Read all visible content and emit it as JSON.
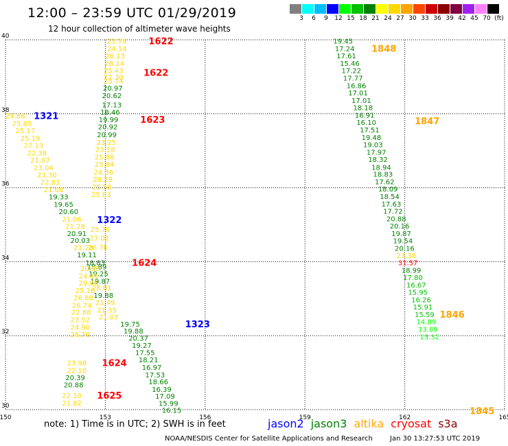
{
  "title": "12:00 – 23:59 UTC 01/29/2019",
  "subtitle": "12 hour collection of altimeter wave heights",
  "color_scale": {
    "colors": [
      "#808080",
      "#00ffff",
      "#00bfff",
      "#0000ff",
      "#00ff00",
      "#00c000",
      "#008000",
      "#ffff00",
      "#ffd700",
      "#ffa500",
      "#ff4500",
      "#cc0000",
      "#8b0000",
      "#800040",
      "#a020f0",
      "#ff80ff",
      "#000000"
    ],
    "labels": [
      "3",
      "6",
      "9",
      "12",
      "15",
      "18",
      "21",
      "24",
      "27",
      "30",
      "33",
      "36",
      "39",
      "42",
      "45",
      "70",
      "(ft)"
    ]
  },
  "note": "note: 1) Time is in UTC; 2) SWH is in feet",
  "legend": [
    {
      "name": "jason2",
      "color": "#0000ff"
    },
    {
      "name": "jason3",
      "color": "#008000"
    },
    {
      "name": "altika",
      "color": "#ffa500"
    },
    {
      "name": "cryosat",
      "color": "#ff0000"
    },
    {
      "name": "s3a",
      "color": "#8b0000"
    }
  ],
  "footer": {
    "agency": "NOAA/NESDIS Center for Satellite Applications and Research",
    "timestamp": "Jan 30 13:27:53 UTC 2019"
  },
  "chart_data": {
    "type": "scatter",
    "xlim": [
      150,
      165
    ],
    "ylim": [
      30,
      40
    ],
    "x_ticks": [
      150,
      153,
      156,
      159,
      162,
      165
    ],
    "y_ticks": [
      30,
      32,
      34,
      36,
      38,
      40
    ],
    "grid": true,
    "time_labels": [
      {
        "text": "1622",
        "x": 154.3,
        "y": 39.97,
        "color": "#ff0000"
      },
      {
        "text": "1622",
        "x": 154.15,
        "y": 39.12,
        "color": "#ff0000"
      },
      {
        "text": "1623",
        "x": 154.05,
        "y": 37.85,
        "color": "#ff0000"
      },
      {
        "text": "1624",
        "x": 153.8,
        "y": 33.98,
        "color": "#ff0000"
      },
      {
        "text": "1624",
        "x": 152.9,
        "y": 31.27,
        "color": "#ff0000"
      },
      {
        "text": "1625",
        "x": 152.75,
        "y": 30.39,
        "color": "#ff0000"
      },
      {
        "text": "1321",
        "x": 150.85,
        "y": 37.95,
        "color": "#0000ff"
      },
      {
        "text": "1322",
        "x": 152.75,
        "y": 35.14,
        "color": "#0000ff"
      },
      {
        "text": "1323",
        "x": 155.4,
        "y": 32.32,
        "color": "#0000ff"
      },
      {
        "text": "1848",
        "x": 161.0,
        "y": 39.77,
        "color": "#ffa500"
      },
      {
        "text": "1847",
        "x": 162.3,
        "y": 37.81,
        "color": "#ffa500"
      },
      {
        "text": "1846",
        "x": 163.05,
        "y": 32.58,
        "color": "#ffa500"
      },
      {
        "text": "1845",
        "x": 163.95,
        "y": 29.97,
        "color": "#ffa500"
      }
    ],
    "points": [
      {
        "v": "23.78",
        "x": 153.05,
        "y": 39.97,
        "c": "#ffd700"
      },
      {
        "v": "24.14",
        "x": 153.05,
        "y": 39.77,
        "c": "#ffd700"
      },
      {
        "v": "26.13",
        "x": 153.0,
        "y": 39.57,
        "c": "#ffd700"
      },
      {
        "v": "28.14",
        "x": 152.98,
        "y": 39.37,
        "c": "#ffd700"
      },
      {
        "v": "25.43",
        "x": 152.95,
        "y": 39.17,
        "c": "#ffd700"
      },
      {
        "v": "22.30",
        "x": 152.95,
        "y": 39.0,
        "c": "#ffd700"
      },
      {
        "v": "23.74",
        "x": 152.95,
        "y": 38.9,
        "c": "#ffd700"
      },
      {
        "v": "20.97",
        "x": 152.93,
        "y": 38.7,
        "c": "#008000"
      },
      {
        "v": "20.62",
        "x": 152.9,
        "y": 38.5,
        "c": "#008000"
      },
      {
        "v": "17.13",
        "x": 152.9,
        "y": 38.25,
        "c": "#008000"
      },
      {
        "v": "18.46",
        "x": 152.85,
        "y": 38.05,
        "c": "#008000"
      },
      {
        "v": "19.99",
        "x": 152.8,
        "y": 37.85,
        "c": "#008000"
      },
      {
        "v": "20.92",
        "x": 152.78,
        "y": 37.65,
        "c": "#008000"
      },
      {
        "v": "20.99",
        "x": 152.75,
        "y": 37.44,
        "c": "#008000"
      },
      {
        "v": "23.25",
        "x": 152.73,
        "y": 37.24,
        "c": "#ffd700"
      },
      {
        "v": "23.18",
        "x": 152.7,
        "y": 37.04,
        "c": "#ffd700"
      },
      {
        "v": "25.98",
        "x": 152.68,
        "y": 36.84,
        "c": "#ffd700"
      },
      {
        "v": "25.84",
        "x": 152.68,
        "y": 36.64,
        "c": "#ffd700"
      },
      {
        "v": "24.36",
        "x": 152.65,
        "y": 36.43,
        "c": "#ffd700"
      },
      {
        "v": "28.29",
        "x": 152.63,
        "y": 36.23,
        "c": "#ffd700"
      },
      {
        "v": "25.50",
        "x": 152.6,
        "y": 36.03,
        "c": "#ffd700"
      },
      {
        "v": "25.83",
        "x": 152.58,
        "y": 35.83,
        "c": "#ffd700"
      },
      {
        "v": "25.76",
        "x": 152.55,
        "y": 34.88,
        "c": "#ffd700"
      },
      {
        "v": "27.01",
        "x": 152.53,
        "y": 34.65,
        "c": "#ffd700"
      },
      {
        "v": "26.76",
        "x": 152.48,
        "y": 34.4,
        "c": "#ffd700"
      },
      {
        "v": "18.83",
        "x": 152.4,
        "y": 33.98,
        "c": "#008000"
      },
      {
        "v": "18.89",
        "x": 152.45,
        "y": 33.87,
        "c": "#008000"
      },
      {
        "v": "19.25",
        "x": 152.5,
        "y": 33.68,
        "c": "#008000"
      },
      {
        "v": "19.87",
        "x": 152.55,
        "y": 33.48,
        "c": "#008000"
      },
      {
        "v": "28.01",
        "x": 152.6,
        "y": 33.3,
        "c": "#ffd700"
      },
      {
        "v": "19.88",
        "x": 152.65,
        "y": 33.1,
        "c": "#008000"
      },
      {
        "v": "21.49",
        "x": 152.7,
        "y": 32.9,
        "c": "#ffd700"
      },
      {
        "v": "21.35",
        "x": 152.75,
        "y": 32.7,
        "c": "#ffd700"
      },
      {
        "v": "21.03",
        "x": 152.8,
        "y": 32.51,
        "c": "#ffd700"
      },
      {
        "v": "19.75",
        "x": 153.45,
        "y": 32.32,
        "c": "#008000"
      },
      {
        "v": "19.88",
        "x": 153.55,
        "y": 32.13,
        "c": "#008000"
      },
      {
        "v": "20.37",
        "x": 153.7,
        "y": 31.94,
        "c": "#008000"
      },
      {
        "v": "19.27",
        "x": 153.8,
        "y": 31.74,
        "c": "#008000"
      },
      {
        "v": "17.55",
        "x": 153.9,
        "y": 31.55,
        "c": "#008000"
      },
      {
        "v": "18.21",
        "x": 154.0,
        "y": 31.35,
        "c": "#008000"
      },
      {
        "v": "16.97",
        "x": 154.1,
        "y": 31.15,
        "c": "#008000"
      },
      {
        "v": "17.53",
        "x": 154.2,
        "y": 30.95,
        "c": "#008000"
      },
      {
        "v": "18.66",
        "x": 154.3,
        "y": 30.76,
        "c": "#008000"
      },
      {
        "v": "16.39",
        "x": 154.4,
        "y": 30.56,
        "c": "#008000"
      },
      {
        "v": "17.09",
        "x": 154.5,
        "y": 30.37,
        "c": "#008000"
      },
      {
        "v": "15.99",
        "x": 154.6,
        "y": 30.18,
        "c": "#008000"
      },
      {
        "v": "16.15",
        "x": 154.7,
        "y": 29.99,
        "c": "#008000"
      },
      {
        "v": "24.88",
        "x": 150.0,
        "y": 37.95,
        "c": "#ffd700"
      },
      {
        "v": "25.85",
        "x": 150.2,
        "y": 37.75,
        "c": "#ffd700"
      },
      {
        "v": "25.17",
        "x": 150.3,
        "y": 37.55,
        "c": "#ffd700"
      },
      {
        "v": "25.19",
        "x": 150.45,
        "y": 37.35,
        "c": "#ffd700"
      },
      {
        "v": "27.13",
        "x": 150.55,
        "y": 37.15,
        "c": "#ffd700"
      },
      {
        "v": "22.38",
        "x": 150.65,
        "y": 36.95,
        "c": "#ffd700"
      },
      {
        "v": "21.07",
        "x": 150.75,
        "y": 36.75,
        "c": "#ffd700"
      },
      {
        "v": "23.04",
        "x": 150.85,
        "y": 36.55,
        "c": "#ffd700"
      },
      {
        "v": "23.30",
        "x": 150.95,
        "y": 36.35,
        "c": "#ffd700"
      },
      {
        "v": "22.83",
        "x": 151.05,
        "y": 36.16,
        "c": "#ffd700"
      },
      {
        "v": "21.08",
        "x": 151.15,
        "y": 35.96,
        "c": "#ffd700"
      },
      {
        "v": "19.33",
        "x": 151.3,
        "y": 35.76,
        "c": "#008000"
      },
      {
        "v": "19.65",
        "x": 151.45,
        "y": 35.56,
        "c": "#008000"
      },
      {
        "v": "20.60",
        "x": 151.6,
        "y": 35.36,
        "c": "#008000"
      },
      {
        "v": "21.06",
        "x": 151.7,
        "y": 35.16,
        "c": "#ffd700"
      },
      {
        "v": "21.28",
        "x": 151.8,
        "y": 34.96,
        "c": "#ffd700"
      },
      {
        "v": "20.91",
        "x": 151.85,
        "y": 34.77,
        "c": "#008000"
      },
      {
        "v": "20.03",
        "x": 151.95,
        "y": 34.58,
        "c": "#008000"
      },
      {
        "v": "21.28",
        "x": 152.05,
        "y": 34.39,
        "c": "#ffd700"
      },
      {
        "v": "19.11",
        "x": 152.15,
        "y": 34.19,
        "c": "#008000"
      },
      {
        "v": "20.95",
        "x": 152.25,
        "y": 33.82,
        "c": "#ffd700"
      },
      {
        "v": "24.41",
        "x": 152.2,
        "y": 33.62,
        "c": "#ffd700"
      },
      {
        "v": "29.06",
        "x": 152.2,
        "y": 33.43,
        "c": "#ffd700"
      },
      {
        "v": "25.16",
        "x": 152.1,
        "y": 33.23,
        "c": "#ffd700"
      },
      {
        "v": "26.88",
        "x": 152.05,
        "y": 33.03,
        "c": "#ffd700"
      },
      {
        "v": "26.74",
        "x": 152.0,
        "y": 32.83,
        "c": "#ffd700"
      },
      {
        "v": "22.88",
        "x": 151.98,
        "y": 32.64,
        "c": "#ffd700"
      },
      {
        "v": "23.52",
        "x": 151.95,
        "y": 32.44,
        "c": "#ffd700"
      },
      {
        "v": "24.90",
        "x": 151.95,
        "y": 32.24,
        "c": "#ffd700"
      },
      {
        "v": "26.76",
        "x": 151.95,
        "y": 32.04,
        "c": "#ffd700"
      },
      {
        "v": "23.98",
        "x": 151.85,
        "y": 31.27,
        "c": "#ffd700"
      },
      {
        "v": "22.10",
        "x": 151.85,
        "y": 31.07,
        "c": "#ffd700"
      },
      {
        "v": "20.39",
        "x": 151.8,
        "y": 30.87,
        "c": "#008000"
      },
      {
        "v": "20.88",
        "x": 151.75,
        "y": 30.68,
        "c": "#008000"
      },
      {
        "v": "22.10",
        "x": 151.7,
        "y": 30.39,
        "c": "#ffd700"
      },
      {
        "v": "21.82",
        "x": 151.7,
        "y": 30.19,
        "c": "#ffd700"
      },
      {
        "v": "19.45",
        "x": 159.85,
        "y": 39.97,
        "c": "#008000"
      },
      {
        "v": "17.24",
        "x": 159.9,
        "y": 39.77,
        "c": "#008000"
      },
      {
        "v": "17.61",
        "x": 159.95,
        "y": 39.57,
        "c": "#008000"
      },
      {
        "v": "15.46",
        "x": 160.05,
        "y": 39.37,
        "c": "#008000"
      },
      {
        "v": "17.22",
        "x": 160.1,
        "y": 39.17,
        "c": "#008000"
      },
      {
        "v": "17.77",
        "x": 160.15,
        "y": 38.97,
        "c": "#008000"
      },
      {
        "v": "16.86",
        "x": 160.25,
        "y": 38.77,
        "c": "#008000"
      },
      {
        "v": "17.01",
        "x": 160.3,
        "y": 38.57,
        "c": "#008000"
      },
      {
        "v": "17.01",
        "x": 160.4,
        "y": 38.37,
        "c": "#008000"
      },
      {
        "v": "18.18",
        "x": 160.45,
        "y": 38.17,
        "c": "#008000"
      },
      {
        "v": "16.91",
        "x": 160.5,
        "y": 37.97,
        "c": "#008000"
      },
      {
        "v": "16.10",
        "x": 160.55,
        "y": 37.77,
        "c": "#008000"
      },
      {
        "v": "17.51",
        "x": 160.65,
        "y": 37.57,
        "c": "#008000"
      },
      {
        "v": "19.48",
        "x": 160.7,
        "y": 37.37,
        "c": "#008000"
      },
      {
        "v": "19.03",
        "x": 160.75,
        "y": 37.17,
        "c": "#008000"
      },
      {
        "v": "17.97",
        "x": 160.85,
        "y": 36.97,
        "c": "#008000"
      },
      {
        "v": "18.32",
        "x": 160.9,
        "y": 36.77,
        "c": "#008000"
      },
      {
        "v": "18.94",
        "x": 161.0,
        "y": 36.56,
        "c": "#008000"
      },
      {
        "v": "18.83",
        "x": 161.05,
        "y": 36.37,
        "c": "#008000"
      },
      {
        "v": "17.62",
        "x": 161.1,
        "y": 36.17,
        "c": "#008000"
      },
      {
        "v": "18.09",
        "x": 161.2,
        "y": 35.97,
        "c": "#008000"
      },
      {
        "v": "18.54",
        "x": 161.25,
        "y": 35.77,
        "c": "#008000"
      },
      {
        "v": "17.63",
        "x": 161.3,
        "y": 35.57,
        "c": "#008000"
      },
      {
        "v": "17.72",
        "x": 161.35,
        "y": 35.37,
        "c": "#008000"
      },
      {
        "v": "20.88",
        "x": 161.45,
        "y": 35.17,
        "c": "#008000"
      },
      {
        "v": "20.16",
        "x": 161.55,
        "y": 34.97,
        "c": "#008000"
      },
      {
        "v": "19.87",
        "x": 161.6,
        "y": 34.77,
        "c": "#008000"
      },
      {
        "v": "19.54",
        "x": 161.65,
        "y": 34.57,
        "c": "#008000"
      },
      {
        "v": "20.16",
        "x": 161.7,
        "y": 34.37,
        "c": "#008000"
      },
      {
        "v": "23.38",
        "x": 161.75,
        "y": 34.17,
        "c": "#ffd700"
      },
      {
        "v": "31.57",
        "x": 161.8,
        "y": 33.98,
        "c": "#ff0000"
      },
      {
        "v": "18.99",
        "x": 161.9,
        "y": 33.78,
        "c": "#008000"
      },
      {
        "v": "17.80",
        "x": 161.95,
        "y": 33.58,
        "c": "#00c000"
      },
      {
        "v": "16.67",
        "x": 162.05,
        "y": 33.38,
        "c": "#00c000"
      },
      {
        "v": "15.95",
        "x": 162.1,
        "y": 33.18,
        "c": "#00c000"
      },
      {
        "v": "16.26",
        "x": 162.2,
        "y": 32.98,
        "c": "#00c000"
      },
      {
        "v": "15.91",
        "x": 162.25,
        "y": 32.78,
        "c": "#00c000"
      },
      {
        "v": "15.59",
        "x": 162.3,
        "y": 32.58,
        "c": "#00c000"
      },
      {
        "v": "14.89",
        "x": 162.35,
        "y": 32.38,
        "c": "#00ff00"
      },
      {
        "v": "13.89",
        "x": 162.4,
        "y": 32.18,
        "c": "#00ff00"
      },
      {
        "v": "13.32",
        "x": 162.45,
        "y": 31.98,
        "c": "#00ff00"
      }
    ]
  }
}
